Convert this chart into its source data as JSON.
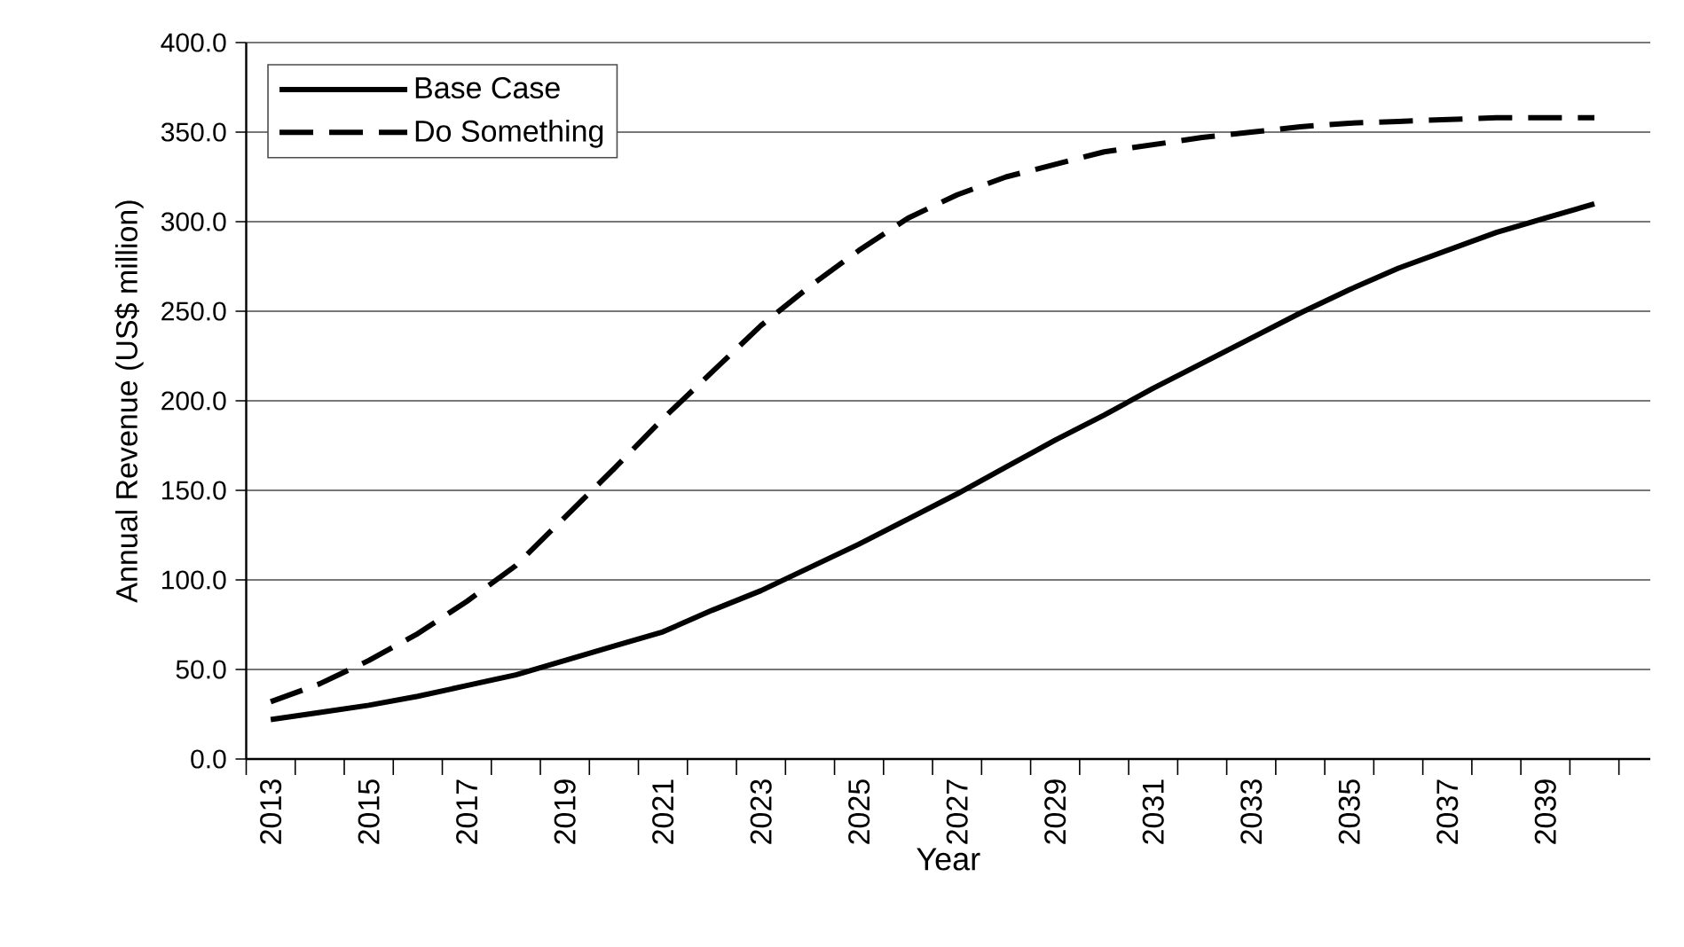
{
  "chart_data": {
    "type": "line",
    "xlabel": "Year",
    "ylabel": "Annual Revenue (US$ million)",
    "categories": [
      "2013",
      null,
      "2015",
      null,
      "2017",
      null,
      "2019",
      null,
      "2021",
      null,
      "2023",
      null,
      "2025",
      null,
      "2027",
      null,
      "2029",
      null,
      "2031",
      null,
      "2033",
      null,
      "2035",
      null,
      "2037",
      null,
      "2039",
      null
    ],
    "series": [
      {
        "name": "Base Case",
        "color": "#000000",
        "line_style": "solid",
        "values": [
          22,
          26,
          30,
          35,
          41,
          47,
          55,
          63,
          71,
          83,
          94,
          107,
          120,
          134,
          148,
          163,
          178,
          192,
          207,
          221,
          235,
          249,
          262,
          274,
          284,
          294,
          302,
          310
        ]
      },
      {
        "name": "Do Something",
        "color": "#000000",
        "line_style": "dashed",
        "values": [
          32,
          42,
          55,
          70,
          88,
          108,
          135,
          162,
          190,
          216,
          242,
          264,
          284,
          302,
          315,
          325,
          332,
          339,
          343,
          347,
          350,
          353,
          355,
          356,
          357,
          358,
          358,
          358
        ]
      }
    ],
    "ylim": [
      0,
      400
    ],
    "yticks": [
      {
        "value": 0,
        "label": "0.0"
      },
      {
        "value": 50,
        "label": "50.0"
      },
      {
        "value": 100,
        "label": "100.0"
      },
      {
        "value": 150,
        "label": "150.0"
      },
      {
        "value": 200,
        "label": "200.0"
      },
      {
        "value": 250,
        "label": "250.0"
      },
      {
        "value": 300,
        "label": "300.0"
      },
      {
        "value": 350,
        "label": "350.0"
      },
      {
        "value": 400,
        "label": "400.0"
      }
    ],
    "grid": "y",
    "legend": "top left",
    "marker": "none"
  }
}
